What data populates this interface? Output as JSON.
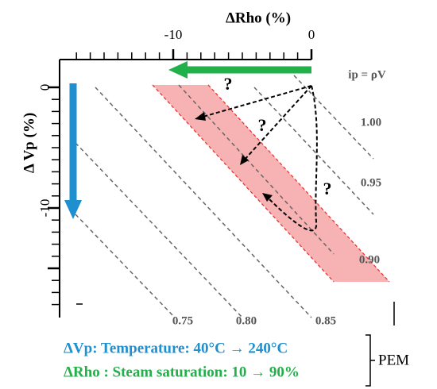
{
  "axes": {
    "x_title": "ΔRho (%)",
    "x_ticks": [
      "-10",
      "0"
    ],
    "y_title": "Δ Vp (%)",
    "y_ticks": [
      "0",
      "-10"
    ]
  },
  "contours": [
    "ip = ρV",
    "1.00",
    "0.95",
    "0.90",
    "0.85",
    "0.80",
    "0.75"
  ],
  "question_marks": [
    "?",
    "?",
    "?"
  ],
  "legend": {
    "lines": [
      "ΔVp: Temperature: 40°C → 240°C",
      "ΔRho : Steam saturation: 10 → 90%"
    ],
    "group": "PEM"
  }
}
